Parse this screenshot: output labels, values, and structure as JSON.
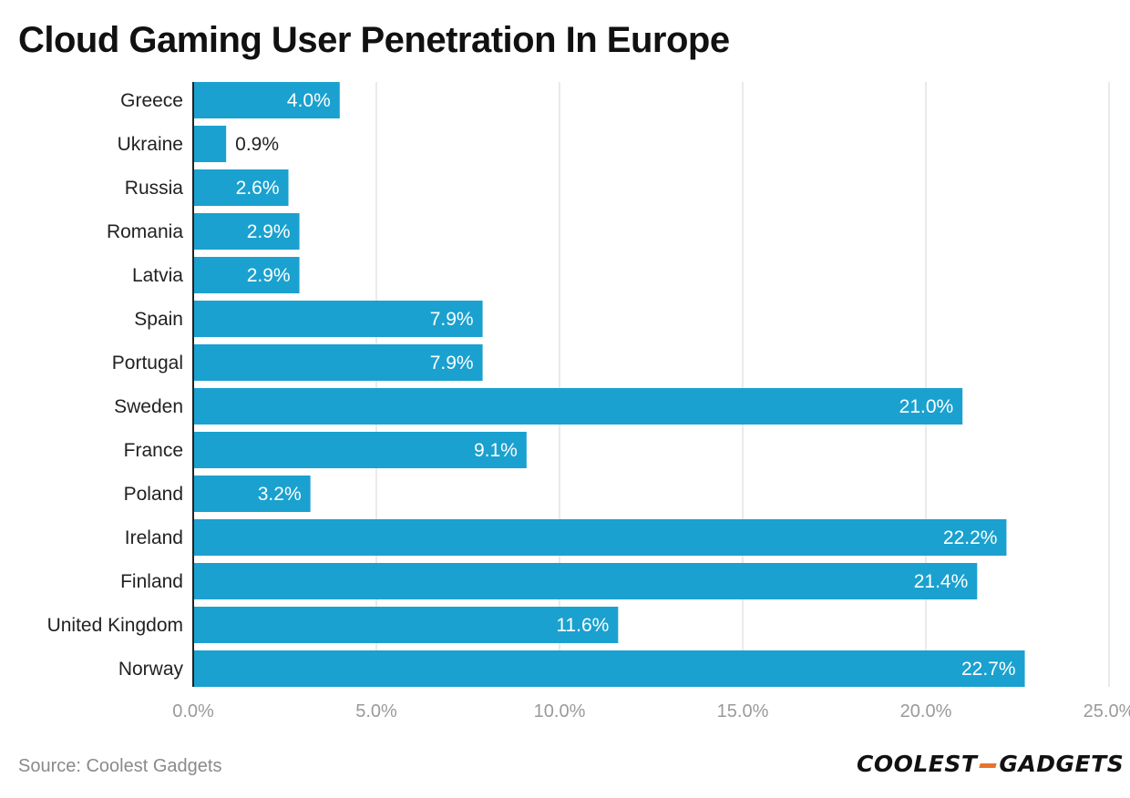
{
  "title": "Cloud Gaming User Penetration In Europe",
  "source": "Source: Coolest Gadgets",
  "logo": {
    "part1": "COOLEST",
    "part2": "GADGETS"
  },
  "colors": {
    "bar": "#1aa1cf",
    "grid": "#e3e3e3",
    "axis": "#222222",
    "tick": "#9a9a9a",
    "label_in": "#ffffff",
    "label_out": "#222222",
    "logo_accent": "#e8732d"
  },
  "chart_data": {
    "type": "bar",
    "orientation": "horizontal",
    "title": "Cloud Gaming User Penetration In Europe",
    "categories": [
      "Greece",
      "Ukraine",
      "Russia",
      "Romania",
      "Latvia",
      "Spain",
      "Portugal",
      "Sweden",
      "France",
      "Poland",
      "Ireland",
      "Finland",
      "United Kingdom",
      "Norway"
    ],
    "values": [
      4.0,
      0.9,
      2.6,
      2.9,
      2.9,
      7.9,
      7.9,
      21.0,
      9.1,
      3.2,
      22.2,
      21.4,
      11.6,
      22.7
    ],
    "value_labels": [
      "4.0%",
      "0.9%",
      "2.6%",
      "2.9%",
      "2.9%",
      "7.9%",
      "7.9%",
      "21.0%",
      "9.1%",
      "3.2%",
      "22.2%",
      "21.4%",
      "11.6%",
      "22.7%"
    ],
    "xlim": [
      0,
      25
    ],
    "xticks": [
      0,
      5,
      10,
      15,
      20,
      25
    ],
    "xtick_labels": [
      "0.0%",
      "5.0%",
      "10.0%",
      "15.0%",
      "20.0%",
      "25.0%"
    ],
    "xlabel": "",
    "ylabel": "",
    "grid": true
  }
}
